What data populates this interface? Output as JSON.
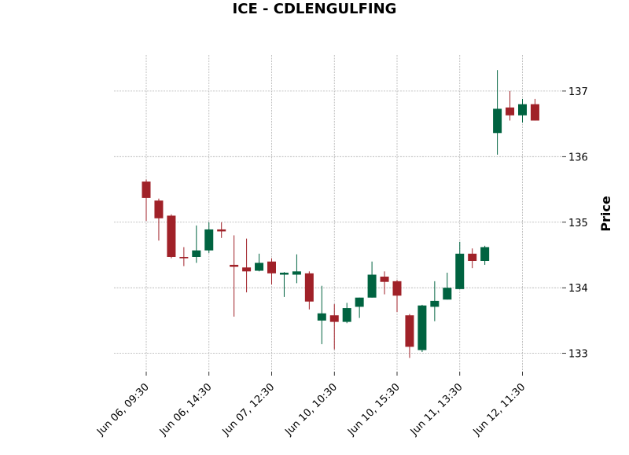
{
  "chart_data": {
    "type": "candlestick",
    "title": "ICE - CDLENGULFING",
    "xlabel": "",
    "ylabel": "Price",
    "ylim": [
      132.72,
      137.55
    ],
    "yticks": [
      133,
      134,
      135,
      136,
      137
    ],
    "grid": true,
    "up_color": "#006340",
    "down_color": "#A02128",
    "xtick_labels": [
      {
        "index": 0,
        "label": "Jun 06, 09:30"
      },
      {
        "index": 5,
        "label": "Jun 06, 14:30"
      },
      {
        "index": 10,
        "label": "Jun 07, 12:30"
      },
      {
        "index": 15,
        "label": "Jun 10, 10:30"
      },
      {
        "index": 20,
        "label": "Jun 10, 15:30"
      },
      {
        "index": 25,
        "label": "Jun 11, 13:30"
      },
      {
        "index": 30,
        "label": "Jun 12, 11:30"
      }
    ],
    "candles": [
      {
        "open": 135.62,
        "high": 135.65,
        "low": 135.02,
        "close": 135.37
      },
      {
        "open": 135.33,
        "high": 135.36,
        "low": 134.72,
        "close": 135.06
      },
      {
        "open": 135.1,
        "high": 135.12,
        "low": 134.45,
        "close": 134.47
      },
      {
        "open": 134.47,
        "high": 134.62,
        "low": 134.33,
        "close": 134.45
      },
      {
        "open": 134.47,
        "high": 134.95,
        "low": 134.38,
        "close": 134.57
      },
      {
        "open": 134.57,
        "high": 135.0,
        "low": 134.53,
        "close": 134.89
      },
      {
        "open": 134.89,
        "high": 135.0,
        "low": 134.76,
        "close": 134.86
      },
      {
        "open": 134.35,
        "high": 134.8,
        "low": 133.56,
        "close": 134.32
      },
      {
        "open": 134.31,
        "high": 134.75,
        "low": 133.93,
        "close": 134.25
      },
      {
        "open": 134.26,
        "high": 134.52,
        "low": 134.25,
        "close": 134.38
      },
      {
        "open": 134.4,
        "high": 134.45,
        "low": 134.05,
        "close": 134.22
      },
      {
        "open": 134.2,
        "high": 134.24,
        "low": 133.86,
        "close": 134.23
      },
      {
        "open": 134.2,
        "high": 134.51,
        "low": 134.07,
        "close": 134.25
      },
      {
        "open": 134.22,
        "high": 134.25,
        "low": 133.67,
        "close": 133.79
      },
      {
        "open": 133.5,
        "high": 134.03,
        "low": 133.14,
        "close": 133.61
      },
      {
        "open": 133.58,
        "high": 133.75,
        "low": 133.06,
        "close": 133.48
      },
      {
        "open": 133.48,
        "high": 133.77,
        "low": 133.46,
        "close": 133.69
      },
      {
        "open": 133.71,
        "high": 133.85,
        "low": 133.54,
        "close": 133.85
      },
      {
        "open": 133.85,
        "high": 134.4,
        "low": 133.85,
        "close": 134.2
      },
      {
        "open": 134.17,
        "high": 134.25,
        "low": 133.9,
        "close": 134.09
      },
      {
        "open": 134.1,
        "high": 134.12,
        "low": 133.63,
        "close": 133.88
      },
      {
        "open": 133.58,
        "high": 133.6,
        "low": 132.93,
        "close": 133.1
      },
      {
        "open": 133.05,
        "high": 133.74,
        "low": 133.02,
        "close": 133.73
      },
      {
        "open": 133.71,
        "high": 134.1,
        "low": 133.49,
        "close": 133.8
      },
      {
        "open": 133.82,
        "high": 134.23,
        "low": 133.82,
        "close": 134.0
      },
      {
        "open": 133.98,
        "high": 134.7,
        "low": 133.98,
        "close": 134.52
      },
      {
        "open": 134.52,
        "high": 134.6,
        "low": 134.3,
        "close": 134.41
      },
      {
        "open": 134.41,
        "high": 134.64,
        "low": 134.35,
        "close": 134.62
      },
      {
        "open": 136.36,
        "high": 137.32,
        "low": 136.03,
        "close": 136.73
      },
      {
        "open": 136.75,
        "high": 137.0,
        "low": 136.55,
        "close": 136.63
      },
      {
        "open": 136.63,
        "high": 136.88,
        "low": 136.52,
        "close": 136.8
      },
      {
        "open": 136.8,
        "high": 136.88,
        "low": 136.55,
        "close": 136.55
      }
    ]
  }
}
